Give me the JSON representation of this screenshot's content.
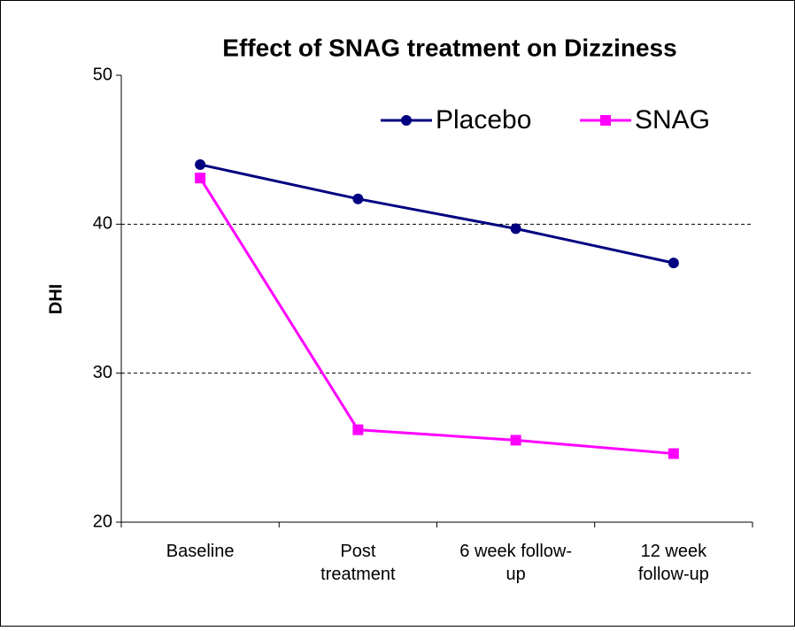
{
  "chart_data": {
    "type": "line",
    "title": "Effect of SNAG treatment on Dizziness",
    "y_label": "DHI",
    "categories": [
      "Baseline",
      "Post treatment",
      "6 week follow-up",
      "12 week follow-up"
    ],
    "series": [
      {
        "name": "Placebo",
        "color": "#000080",
        "marker": "circle",
        "values": [
          44.0,
          41.7,
          39.7,
          37.4
        ]
      },
      {
        "name": "SNAG",
        "color": "#ff00ff",
        "marker": "square",
        "values": [
          43.1,
          26.2,
          25.5,
          24.6
        ]
      }
    ],
    "ylim": [
      20,
      50
    ],
    "yticks": [
      20,
      30,
      40,
      50
    ],
    "grid": true,
    "legend": "top-right"
  }
}
